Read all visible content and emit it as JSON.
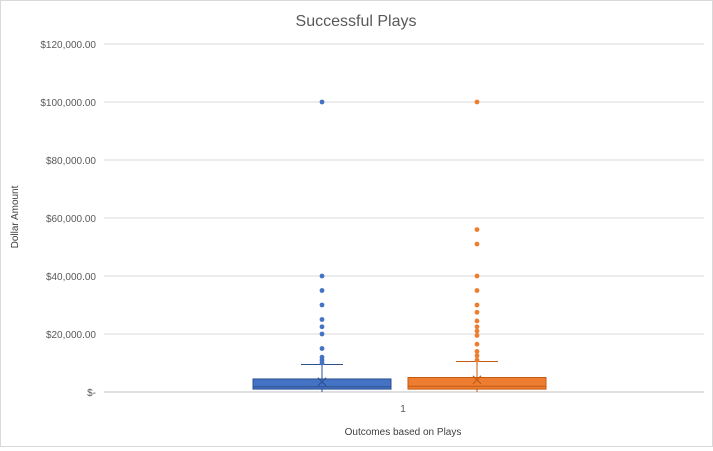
{
  "chart_data": {
    "type": "box",
    "title": "Successful Plays",
    "xlabel": "Outcomes based on Plays",
    "ylabel": "Dollar Amount",
    "categories": [
      "1"
    ],
    "ylim": [
      0,
      120000
    ],
    "yticks": [
      0,
      20000,
      40000,
      60000,
      80000,
      100000,
      120000
    ],
    "ytick_labels": [
      "$-",
      "$20,000.00",
      "$40,000.00",
      "$60,000.00",
      "$80,000.00",
      "$100,000.00",
      "$120,000.00"
    ],
    "grid": true,
    "legend": "none",
    "series": [
      {
        "color": "#4472C4",
        "fill": "#4472C4",
        "edge": "#2F528F",
        "min": 0,
        "q1": 1000,
        "median": 1800,
        "q3": 4500,
        "whisker_high": 9500,
        "mean": 3500,
        "outliers": [
          10000,
          11000,
          12000,
          15000,
          20000,
          22500,
          25000,
          30000,
          35000,
          40000,
          100000
        ]
      },
      {
        "color": "#ED7D31",
        "fill": "#ED7D31",
        "edge": "#C55A11",
        "min": 0,
        "q1": 1000,
        "median": 2000,
        "q3": 5000,
        "whisker_high": 10500,
        "mean": 4200,
        "outliers": [
          11000,
          12500,
          14000,
          16500,
          19500,
          21000,
          22500,
          24500,
          27500,
          30000,
          35000,
          40000,
          51000,
          56000,
          100000
        ]
      }
    ]
  }
}
